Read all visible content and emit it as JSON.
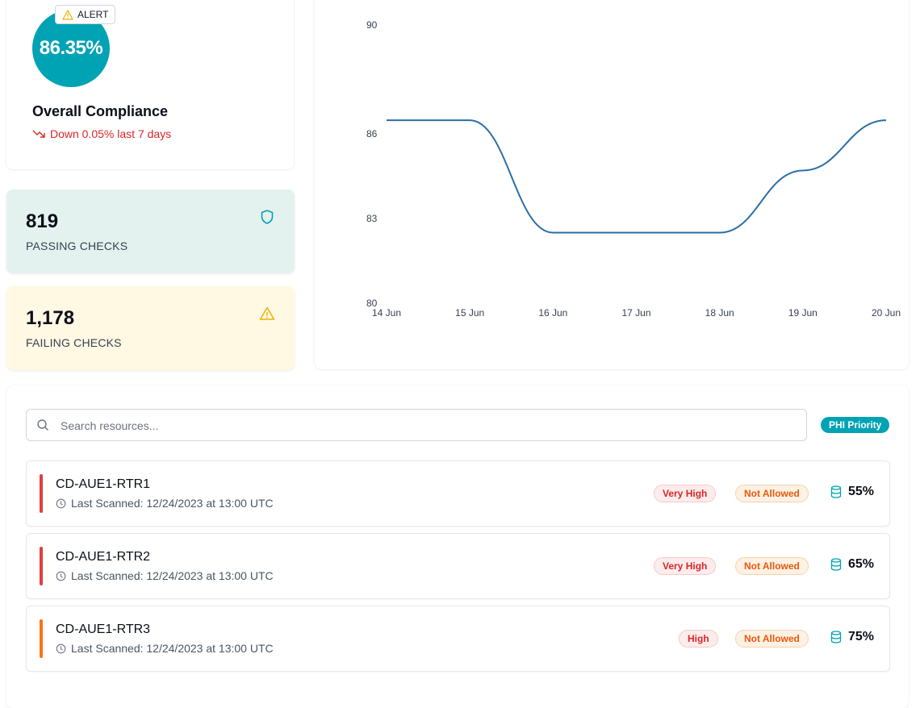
{
  "compliance": {
    "score": "86.35%",
    "alert_label": "ALERT",
    "title": "Overall Compliance",
    "trend": "Down 0.05% last 7 days",
    "colors": {
      "ring": "#00a3b4",
      "trend": "#dc2626"
    }
  },
  "passing": {
    "count": "819",
    "label": "PASSING CHECKS",
    "icon": "shield-icon",
    "color": "#00a3b4"
  },
  "failing": {
    "count": "1,178",
    "label": "FAILING CHECKS",
    "icon": "warning-icon",
    "color": "#eab308"
  },
  "chart_data": {
    "type": "line",
    "x": [
      "14 Jun",
      "15 Jun",
      "16 Jun",
      "17 Jun",
      "18 Jun",
      "19 Jun",
      "20 Jun"
    ],
    "series": [
      {
        "values": [
          86.5,
          86.5,
          82.5,
          82.5,
          82.5,
          84.7,
          86.5
        ]
      }
    ],
    "y_ticks": [
      "90",
      "86",
      "83",
      "80"
    ],
    "ylim": [
      80,
      90
    ],
    "grid": false,
    "line_color": "#2b6ea6"
  },
  "search": {
    "placeholder": "Search resources..."
  },
  "filter_pill": "PHI Priority",
  "resources": [
    {
      "name": "CD-AUE1-RTR1",
      "scanned": "Last Scanned: 12/24/2023 at 13:00 UTC",
      "severity": "Very High",
      "allowed": "Not Allowed",
      "score": "55%",
      "bar_color": "#e53e3e"
    },
    {
      "name": "CD-AUE1-RTR2",
      "scanned": "Last Scanned: 12/24/2023 at 13:00 UTC",
      "severity": "Very High",
      "allowed": "Not Allowed",
      "score": "65%",
      "bar_color": "#e53e3e"
    },
    {
      "name": "CD-AUE1-RTR3",
      "scanned": "Last Scanned: 12/24/2023 at 13:00 UTC",
      "severity": "High",
      "allowed": "Not Allowed",
      "score": "75%",
      "bar_color": "#f97316"
    }
  ]
}
